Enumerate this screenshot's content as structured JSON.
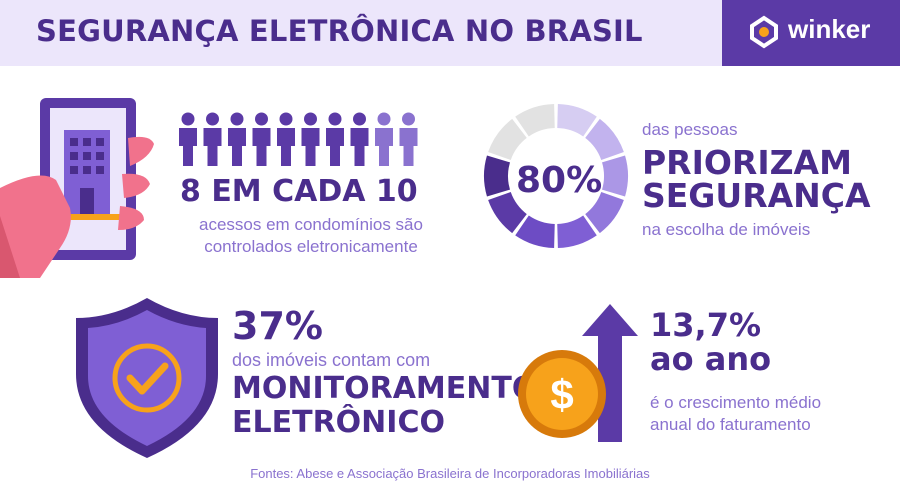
{
  "header": {
    "title": "SEGURANÇA ELETRÔNICA NO BRASIL",
    "logo_text": "winker"
  },
  "stat_access": {
    "value": "8 EM CADA 10",
    "description_line1": "acessos em condomínios são",
    "description_line2": "controlados eletronicamente",
    "people_total": 10,
    "people_highlighted": 8
  },
  "stat_priority": {
    "value": "80%",
    "pre_text": "das pessoas",
    "headline_line1": "PRIORIZAM",
    "headline_line2": "SEGURANÇA",
    "post_text": "na escolha de imóveis",
    "ring_fraction": 0.8
  },
  "stat_monitoring": {
    "value": "37%",
    "pre_text": "dos imóveis contam com",
    "headline_line1": "MONITORAMENTO",
    "headline_line2": "ELETRÔNICO"
  },
  "stat_growth": {
    "value_line1": "13,7%",
    "value_line2": "ao ano",
    "description_line1": "é o crescimento médio",
    "description_line2": "anual do faturamento",
    "coin_symbol": "$"
  },
  "footer": {
    "source": "Fontes: Abese e Associação Brasileira de Incorporadoras Imobiliárias"
  },
  "colors": {
    "primary": "#4a2d8c",
    "accent": "#5b3aa6",
    "light": "#ece6fb",
    "text_light": "#8a72cf",
    "hand": "#f1728c",
    "coin": "#f7a21b"
  },
  "icons": [
    "smartphone-building-icon",
    "hand-icon",
    "person-icon",
    "donut-ring-icon",
    "shield-check-icon",
    "coin-dollar-icon",
    "up-arrow-icon",
    "winker-logo-icon"
  ]
}
